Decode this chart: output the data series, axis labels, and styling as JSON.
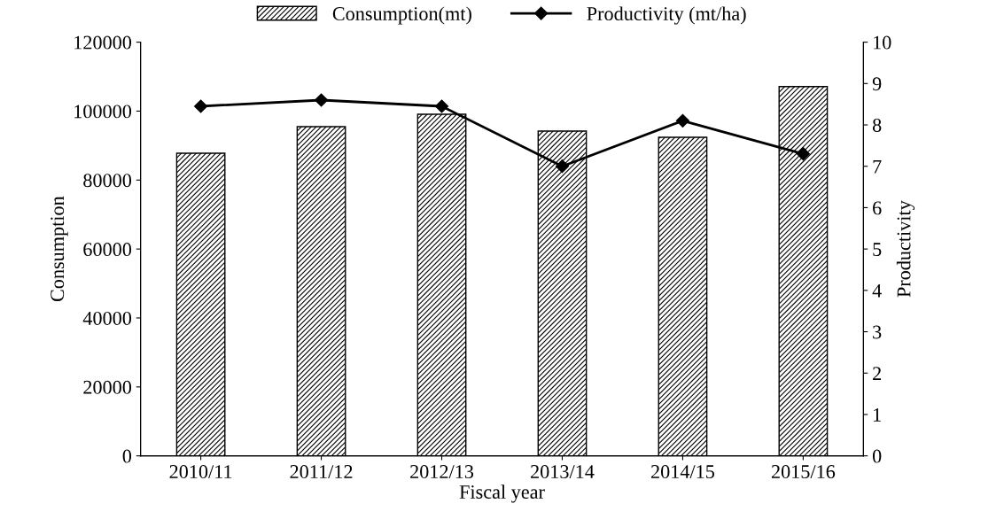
{
  "chart_data": {
    "type": "bar",
    "xlabel": "Fiscal year",
    "ylabel": "Consumption",
    "y2label": "Productivity",
    "categories": [
      "2010/11",
      "2011/12",
      "2012/13",
      "2013/14",
      "2014/15",
      "2015/16"
    ],
    "series": [
      {
        "name": "Consumption(mt)",
        "color": "#000000",
        "values": [
          87800,
          95500,
          99100,
          94200,
          92400,
          107100
        ]
      },
      {
        "name": "Productivity (mt/ha)",
        "type": "line",
        "axis": "y2",
        "color": "#000000",
        "marker": "diamond",
        "values": [
          8.45,
          8.6,
          8.45,
          7.0,
          8.1,
          7.3
        ]
      }
    ],
    "ylim": [
      0,
      120000
    ],
    "yticks": [
      0,
      20000,
      40000,
      60000,
      80000,
      100000,
      120000
    ],
    "y2lim": [
      0,
      10
    ],
    "y2ticks": [
      0,
      1,
      2,
      3,
      4,
      5,
      6,
      7,
      8,
      9,
      10
    ],
    "grid": false,
    "legend": "top"
  }
}
